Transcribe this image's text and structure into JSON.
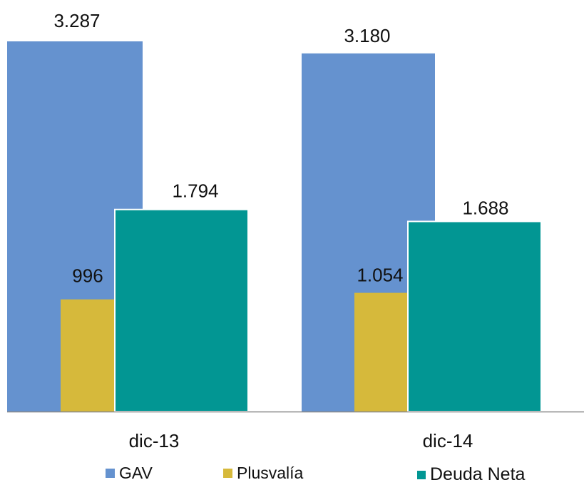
{
  "chart_data": {
    "type": "bar",
    "categories": [
      "dic-13",
      "dic-14"
    ],
    "series": [
      {
        "name": "GAV",
        "values": [
          3287,
          3180
        ],
        "labels": [
          "3.287",
          "3.180"
        ],
        "color": "#6592CF"
      },
      {
        "name": "Plusvalía",
        "values": [
          996,
          1054
        ],
        "labels": [
          "996",
          "1.054"
        ],
        "color": "#D6B93B"
      },
      {
        "name": "Deuda Neta",
        "values": [
          1794,
          1688
        ],
        "labels": [
          "1.794",
          "1.688"
        ],
        "color": "#029693"
      }
    ],
    "ylim": [
      0,
      3500
    ],
    "grid": false,
    "legend_position": "bottom",
    "axis_color": "#888888"
  }
}
